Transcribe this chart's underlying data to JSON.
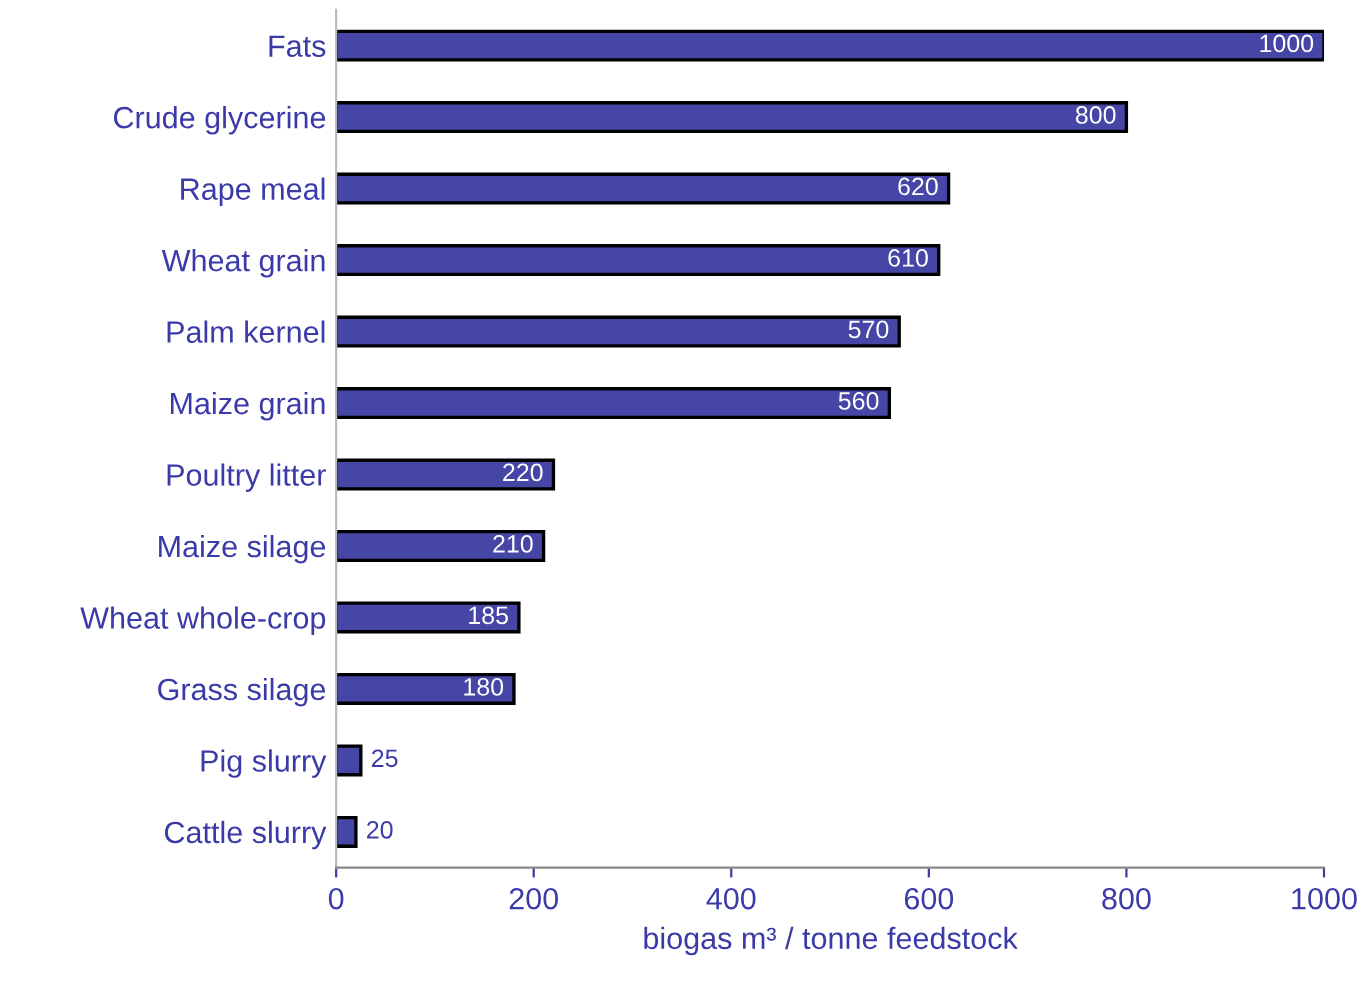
{
  "chart_data": {
    "type": "bar",
    "orientation": "horizontal",
    "xlabel": "biogas m³ / tonne feedstock",
    "categories": [
      "Fats",
      "Crude glycerine",
      "Rape meal",
      "Wheat grain",
      "Palm kernel",
      "Maize grain",
      "Poultry litter",
      "Maize silage",
      "Wheat whole-crop",
      "Grass silage",
      "Pig slurry",
      "Cattle slurry"
    ],
    "values": [
      1000,
      800,
      620,
      610,
      570,
      560,
      220,
      210,
      185,
      180,
      25,
      20
    ],
    "color": "#4646a6",
    "data_labels": true,
    "xlim": [
      0,
      1000
    ],
    "xticks": [
      0,
      200,
      400,
      600,
      800,
      1000
    ],
    "grid": false,
    "legend": false
  }
}
